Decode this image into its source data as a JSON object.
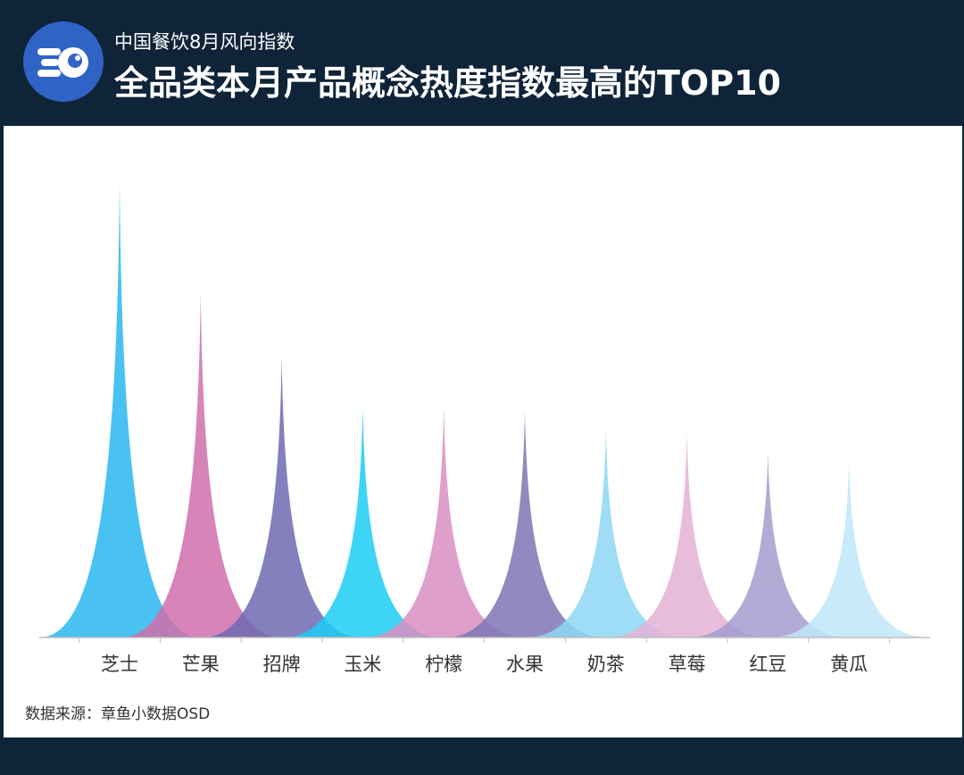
{
  "header": {
    "subtitle": "中国餐饮8月风向指数",
    "title": "全品类本月产品概念热度指数最高的TOP10",
    "logo_icon": "rocket-eye-icon",
    "logo_color": "#2f63c6"
  },
  "chart_data": {
    "type": "area",
    "categories": [
      "芝士",
      "芒果",
      "招牌",
      "玉米",
      "柠檬",
      "水果",
      "奶茶",
      "草莓",
      "红豆",
      "黄瓜"
    ],
    "values": [
      100,
      76,
      62,
      51,
      51,
      50,
      46,
      45,
      41,
      39
    ],
    "colors": [
      "#2ab7ee",
      "#d06fab",
      "#6e69b2",
      "#1ccdf4",
      "#d98ec2",
      "#7e76b6",
      "#8dd7f3",
      "#e4b1d6",
      "#a39ccf",
      "#bfe6f8"
    ],
    "ylim": [
      0,
      100
    ],
    "grid": false,
    "legend": "none",
    "xlabel": "",
    "ylabel": "",
    "title": ""
  },
  "source": "数据来源：章鱼小数据OSD"
}
